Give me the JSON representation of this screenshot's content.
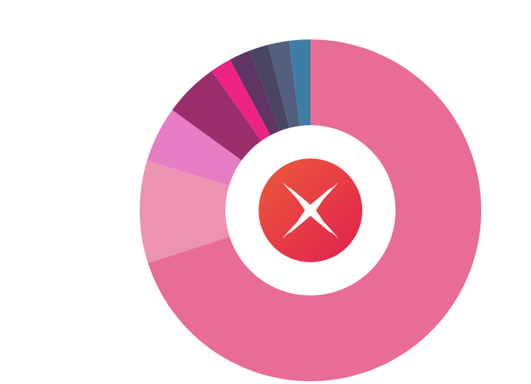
{
  "chart_data": {
    "type": "donut",
    "values": [
      70,
      9.7,
      5.3,
      5.2,
      2,
      2,
      1.8,
      2,
      2
    ],
    "colors": [
      "#e86c96",
      "#ec93b3",
      "#e77dc4",
      "#9b2f6e",
      "#ec2383",
      "#5f3563",
      "#4a4563",
      "#525f7f",
      "#3e7ea6"
    ]
  }
}
